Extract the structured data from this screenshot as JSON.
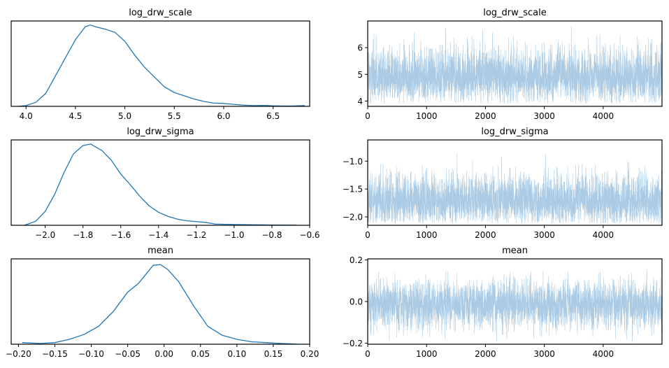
{
  "chart_data": [
    {
      "type": "line",
      "title": "log_drw_scale",
      "xlim": [
        3.85,
        6.87
      ],
      "ylim": [
        0,
        1.05
      ],
      "xticks": [
        4.0,
        4.5,
        5.0,
        5.5,
        6.0,
        6.5
      ],
      "xtick_labels": [
        "4.0",
        "4.5",
        "5.0",
        "5.5",
        "6.0",
        "6.5"
      ],
      "yticks": [],
      "x": [
        3.92,
        4.0,
        4.1,
        4.2,
        4.3,
        4.4,
        4.5,
        4.6,
        4.65,
        4.7,
        4.8,
        4.9,
        5.0,
        5.1,
        5.2,
        5.3,
        5.4,
        5.5,
        5.6,
        5.7,
        5.8,
        5.9,
        6.0,
        6.1,
        6.2,
        6.3,
        6.4,
        6.5,
        6.6,
        6.7,
        6.82
      ],
      "y": [
        0.0,
        0.01,
        0.05,
        0.16,
        0.38,
        0.6,
        0.82,
        0.98,
        1.0,
        0.98,
        0.95,
        0.91,
        0.8,
        0.63,
        0.48,
        0.36,
        0.24,
        0.17,
        0.13,
        0.09,
        0.06,
        0.04,
        0.035,
        0.025,
        0.015,
        0.01,
        0.012,
        0.006,
        0.004,
        0.004,
        0.01
      ]
    },
    {
      "type": "line",
      "title": "log_drw_scale",
      "xlim": [
        0,
        4999
      ],
      "ylim": [
        3.8,
        7.0
      ],
      "xticks": [
        0,
        1000,
        2000,
        3000,
        4000
      ],
      "xtick_labels": [
        "0",
        "1000",
        "2000",
        "3000",
        "4000"
      ],
      "yticks": [
        4,
        5,
        6
      ],
      "ytick_labels": [
        "4",
        "5",
        "6"
      ],
      "n_draws": 5000,
      "center": 4.85,
      "spread": 0.38,
      "min": 3.9,
      "max": 6.8
    },
    {
      "type": "line",
      "title": "log_drw_sigma",
      "xlim": [
        -2.18,
        -0.6
      ],
      "ylim": [
        0,
        1.05
      ],
      "xticks": [
        -2.0,
        -1.8,
        -1.6,
        -1.4,
        -1.2,
        -1.0,
        -0.8,
        -0.6
      ],
      "xtick_labels": [
        "−2.0",
        "−1.8",
        "−1.6",
        "−1.4",
        "−1.2",
        "−1.0",
        "−0.8",
        "−0.6"
      ],
      "yticks": [],
      "x": [
        -2.11,
        -2.05,
        -2.0,
        -1.95,
        -1.9,
        -1.85,
        -1.8,
        -1.76,
        -1.7,
        -1.65,
        -1.6,
        -1.55,
        -1.5,
        -1.45,
        -1.4,
        -1.35,
        -1.3,
        -1.25,
        -1.2,
        -1.15,
        -1.1,
        -1.0,
        -0.9,
        -0.8,
        -0.67
      ],
      "y": [
        0.0,
        0.05,
        0.17,
        0.38,
        0.65,
        0.88,
        0.98,
        1.0,
        0.92,
        0.8,
        0.63,
        0.5,
        0.36,
        0.24,
        0.16,
        0.11,
        0.075,
        0.055,
        0.045,
        0.035,
        0.015,
        0.01,
        0.006,
        0.003,
        0.002
      ]
    },
    {
      "type": "line",
      "title": "log_drw_sigma",
      "xlim": [
        0,
        4999
      ],
      "ylim": [
        -2.15,
        -0.62
      ],
      "xticks": [
        0,
        1000,
        2000,
        3000,
        4000
      ],
      "xtick_labels": [
        "0",
        "1000",
        "2000",
        "3000",
        "4000"
      ],
      "yticks": [
        -2.0,
        -1.5,
        -1.0
      ],
      "ytick_labels": [
        "−2.0",
        "−1.5",
        "−1.0"
      ],
      "n_draws": 5000,
      "center": -1.74,
      "spread": 0.17,
      "min": -2.12,
      "max": -0.67
    },
    {
      "type": "line",
      "title": "mean",
      "xlim": [
        -0.21,
        0.2
      ],
      "ylim": [
        0,
        1.05
      ],
      "xticks": [
        -0.2,
        -0.15,
        -0.1,
        -0.05,
        0.0,
        0.05,
        0.1,
        0.15,
        0.2
      ],
      "xtick_labels": [
        "−0.20",
        "−0.15",
        "−0.10",
        "−0.05",
        "0.00",
        "0.05",
        "0.10",
        "0.15",
        "0.20"
      ],
      "yticks": [],
      "x": [
        -0.195,
        -0.17,
        -0.15,
        -0.13,
        -0.11,
        -0.09,
        -0.07,
        -0.05,
        -0.035,
        -0.025,
        -0.015,
        -0.005,
        0.005,
        0.02,
        0.04,
        0.06,
        0.08,
        0.1,
        0.12,
        0.14,
        0.16,
        0.185
      ],
      "y": [
        0.02,
        0.01,
        0.02,
        0.06,
        0.12,
        0.22,
        0.4,
        0.64,
        0.75,
        0.86,
        0.97,
        0.98,
        0.92,
        0.77,
        0.48,
        0.22,
        0.11,
        0.06,
        0.03,
        0.02,
        0.01,
        0.0
      ]
    },
    {
      "type": "line",
      "title": "mean",
      "xlim": [
        0,
        4999
      ],
      "ylim": [
        -0.205,
        0.205
      ],
      "xticks": [
        0,
        1000,
        2000,
        3000,
        4000
      ],
      "xtick_labels": [
        "0",
        "1000",
        "2000",
        "3000",
        "4000"
      ],
      "yticks": [
        -0.2,
        0.0,
        0.2
      ],
      "ytick_labels": [
        "−0.2",
        "0.0",
        "0.2"
      ],
      "n_draws": 5000,
      "center": -0.015,
      "spread": 0.05,
      "min": -0.195,
      "max": 0.185
    }
  ]
}
